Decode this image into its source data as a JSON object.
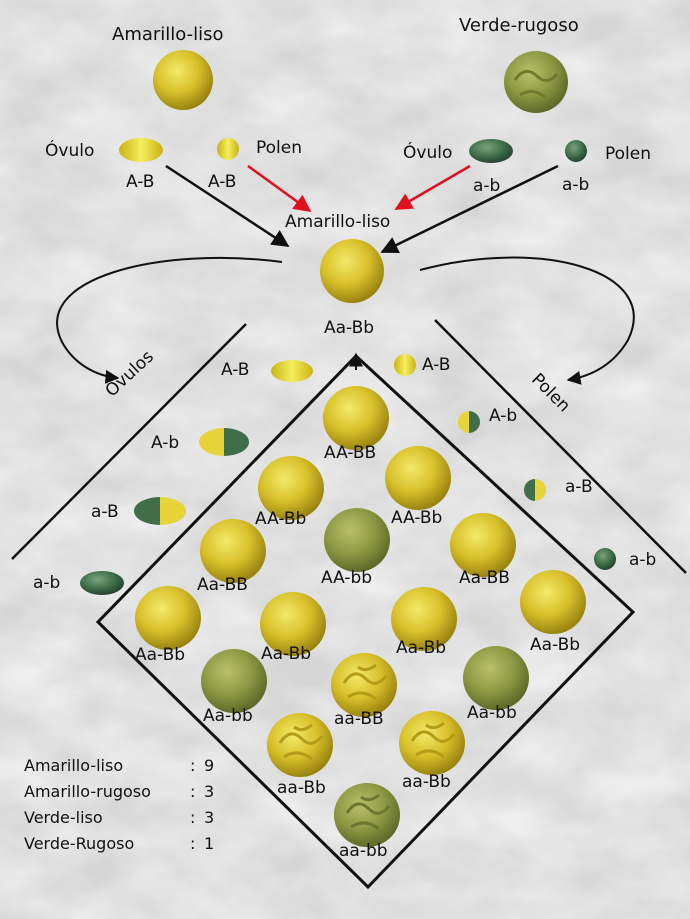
{
  "parents": {
    "left": {
      "title": "Amarillo-liso",
      "ovule_label": "Óvulo",
      "ovule_gamete": "A-B",
      "pollen_label": "Polen",
      "pollen_gamete": "A-B"
    },
    "right": {
      "title": "Verde-rugoso",
      "ovule_label": "Óvulo",
      "ovule_gamete": "a-b",
      "pollen_label": "Polen",
      "pollen_gamete": "a-b"
    }
  },
  "f1": {
    "title": "Amarillo-liso",
    "genotype": "Aa-Bb"
  },
  "side_labels": {
    "ovulos": "Óvulos",
    "polen": "Polen"
  },
  "ovule_gametes": [
    "A-B",
    "A-b",
    "a-B",
    "a-b"
  ],
  "pollen_gametes": [
    "A-B",
    "A-b",
    "a-B",
    "a-b"
  ],
  "grid": [
    {
      "genotype": "AA-BB",
      "phenotype": "yellow-smooth"
    },
    {
      "genotype": "AA-Bb",
      "phenotype": "yellow-smooth"
    },
    {
      "genotype": "AA-Bb",
      "phenotype": "yellow-smooth"
    },
    {
      "genotype": "Aa-BB",
      "phenotype": "yellow-smooth"
    },
    {
      "genotype": "AA-bb",
      "phenotype": "green-smooth"
    },
    {
      "genotype": "Aa-BB",
      "phenotype": "yellow-smooth"
    },
    {
      "genotype": "Aa-Bb",
      "phenotype": "yellow-smooth"
    },
    {
      "genotype": "Aa-Bb",
      "phenotype": "yellow-smooth"
    },
    {
      "genotype": "Aa-Bb",
      "phenotype": "yellow-smooth"
    },
    {
      "genotype": "Aa-Bb",
      "phenotype": "yellow-smooth"
    },
    {
      "genotype": "Aa-bb",
      "phenotype": "green-smooth"
    },
    {
      "genotype": "aa-BB",
      "phenotype": "yellow-wrinkled"
    },
    {
      "genotype": "Aa-bb",
      "phenotype": "green-smooth"
    },
    {
      "genotype": "aa-Bb",
      "phenotype": "yellow-wrinkled"
    },
    {
      "genotype": "aa-Bb",
      "phenotype": "yellow-wrinkled"
    },
    {
      "genotype": "aa-bb",
      "phenotype": "green-wrinkled"
    }
  ],
  "counts": [
    {
      "label": "Amarillo-liso",
      "sep": ":",
      "value": "9"
    },
    {
      "label": "Amarillo-rugoso",
      "sep": ":",
      "value": "3"
    },
    {
      "label": "Verde-liso",
      "sep": ":",
      "value": "3"
    },
    {
      "label": "Verde-Rugoso",
      "sep": ":",
      "value": "1"
    }
  ],
  "colors": {
    "yellow": "#d9c21e",
    "yellow_light": "#f4ea5a",
    "green": "#8f9a45",
    "green_dark": "#3d6b45",
    "red_arrow": "#e0101e",
    "line": "#111111"
  }
}
